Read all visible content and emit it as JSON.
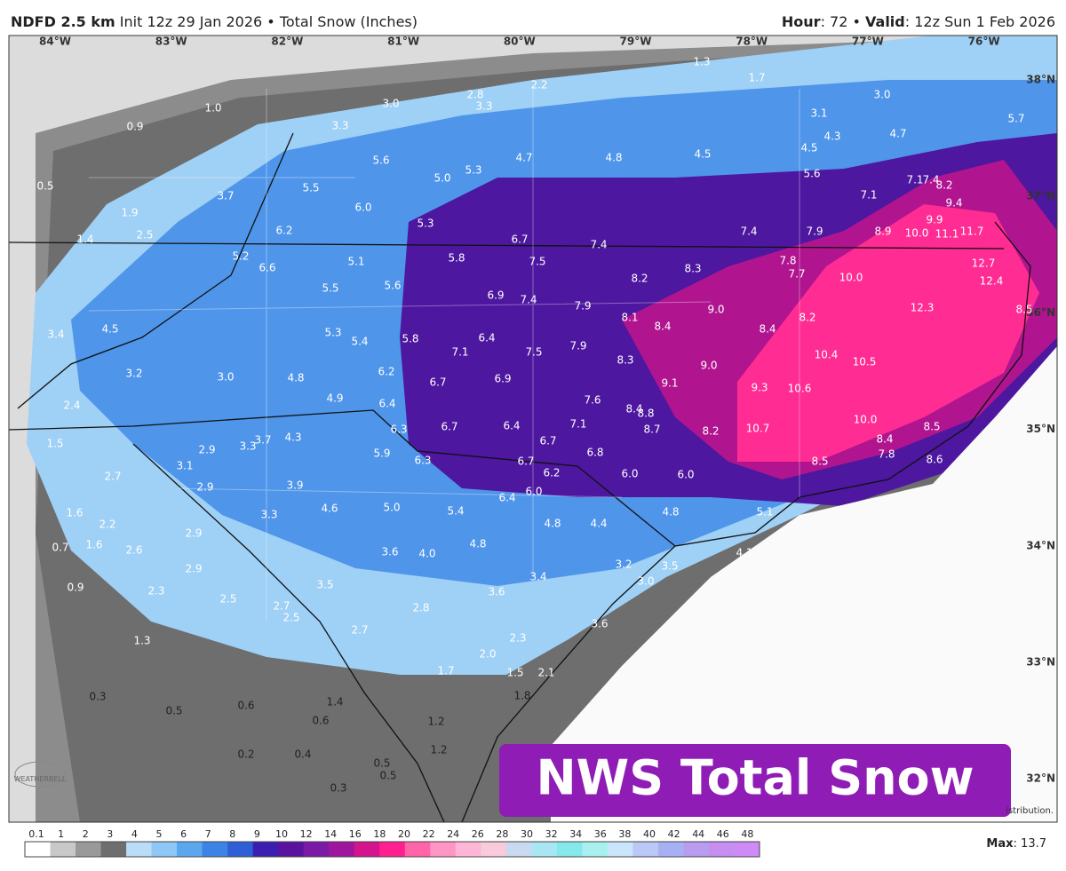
{
  "header": {
    "model": "NDFD 2.5 km",
    "info": "Init 12z 29 Jan 2026 • Total Snow (Inches)",
    "hour_label": "Hour",
    "hour": ": 72 •",
    "valid_label": "Valid",
    "valid": ": 12z Sun 1 Feb 2026"
  },
  "longitudes": [
    "84°W",
    "83°W",
    "82°W",
    "81°W",
    "80°W",
    "79°W",
    "78°W",
    "77°W",
    "76°W"
  ],
  "latitudes": [
    "38°N",
    "37°N",
    "36°N",
    "35°N",
    "34°N",
    "33°N",
    "32°N"
  ],
  "map_labels": [
    "1.3",
    "1.7",
    "2.2",
    "2.8",
    "3.3",
    "3.0",
    "1.0",
    "0.9",
    "3.3",
    "3.0",
    "3.1",
    "4.3",
    "4.7",
    "4.5",
    "5.7",
    "4.7",
    "4.8",
    "4.5",
    "5.6",
    "5.3",
    "5.0",
    "5.6",
    "0.5",
    "3.7",
    "5.5",
    "6.0",
    "7.1",
    "7.1",
    "7.4",
    "8.2",
    "1.9",
    "9.4",
    "6.2",
    "5.3",
    "9.9",
    "1.4",
    "2.5",
    "6.7",
    "7.4",
    "7.4",
    "7.9",
    "8.9",
    "10.0",
    "11.1",
    "11.7",
    "5.2",
    "5.8",
    "7.5",
    "7.8",
    "12.7",
    "6.6",
    "5.1",
    "8.2",
    "8.3",
    "7.7",
    "10.0",
    "12.4",
    "5.5",
    "5.6",
    "6.9",
    "7.4",
    "7.9",
    "8.1",
    "9.0",
    "12.3",
    "8.5",
    "8.2",
    "8.4",
    "8.4",
    "3.4",
    "4.5",
    "5.3",
    "5.4",
    "5.8",
    "6.4",
    "7.9",
    "7.1",
    "7.5",
    "10.4",
    "10.5",
    "8.3",
    "9.0",
    "3.2",
    "3.0",
    "6.2",
    "4.8",
    "6.7",
    "6.9",
    "9.1",
    "9.3",
    "10.6",
    "4.9",
    "6.4",
    "7.6",
    "8.4",
    "8.8",
    "2.4",
    "10.0",
    "8.5",
    "6.3",
    "6.7",
    "6.4",
    "7.1",
    "8.7",
    "8.2",
    "10.7",
    "1.5",
    "2.9",
    "3.3",
    "3.7",
    "4.3",
    "6.7",
    "8.4",
    "5.9",
    "6.3",
    "6.8",
    "7.8",
    "8.6",
    "8.5",
    "6.7",
    "3.1",
    "2.7",
    "6.2",
    "6.0",
    "6.0",
    "2.9",
    "3.9",
    "6.0",
    "6.4",
    "1.6",
    "4.6",
    "5.0",
    "5.4",
    "4.8",
    "5.1",
    "2.2",
    "3.3",
    "4.8",
    "4.4",
    "2.9",
    "0.7",
    "1.6",
    "2.6",
    "3.6",
    "4.0",
    "4.8",
    "3.2",
    "3.5",
    "4.1",
    "2.9",
    "3.4",
    "3.0",
    "0.9",
    "2.3",
    "3.5",
    "3.6",
    "2.5",
    "2.7",
    "2.8",
    "2.5",
    "3.6",
    "2.7",
    "2.3",
    "1.3",
    "2.0",
    "1.7",
    "1.5",
    "2.1",
    "0.3",
    "1.4",
    "1.8",
    "0.6",
    "0.5",
    "0.6",
    "1.2",
    "0.2",
    "0.4",
    "1.2",
    "0.5",
    "0.5",
    "0.3"
  ],
  "badge": "NWS Total Snow",
  "logo": "WEATHERBELL",
  "attribution_fragment": "istribution.",
  "legend": {
    "ticks": [
      "0.1",
      "1",
      "2",
      "3",
      "4",
      "5",
      "6",
      "7",
      "8",
      "9",
      "10",
      "12",
      "14",
      "16",
      "18",
      "20",
      "22",
      "24",
      "26",
      "28",
      "30",
      "32",
      "34",
      "36",
      "38",
      "40",
      "42",
      "44",
      "46",
      "48"
    ],
    "colors": [
      "#ffffff",
      "#c8c8c8",
      "#999999",
      "#6e6e6e",
      "#b9dcf7",
      "#8ec6f5",
      "#5aa7f0",
      "#3d83e6",
      "#2f5fd6",
      "#3c1fb0",
      "#5a139f",
      "#7a1aa6",
      "#a0159e",
      "#d4138f",
      "#ff1f8e",
      "#ff63a8",
      "#ff95c2",
      "#ffb6d6",
      "#f9c9dc",
      "#c9d9f0",
      "#a9e6f4",
      "#85e8ea",
      "#a8f0f0",
      "#c9e4fb",
      "#b9c8f7",
      "#a8b0f4",
      "#b79cf0",
      "#c58ef0",
      "#cf8bf5"
    ]
  },
  "max": {
    "label": "Max",
    "value": "13.7"
  }
}
